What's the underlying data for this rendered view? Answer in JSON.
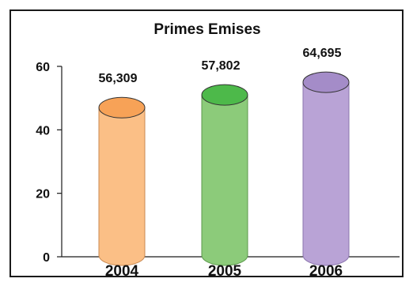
{
  "chart_data": {
    "type": "bar",
    "title": "Primes Emises",
    "categories": [
      "2004",
      "2005",
      "2006"
    ],
    "values": [
      47,
      51,
      55
    ],
    "data_labels": [
      "56,309",
      "57,802",
      "64,695"
    ],
    "ylim": [
      0,
      60
    ],
    "y_ticks": [
      0,
      20,
      40,
      60
    ],
    "xlabel": "",
    "ylabel": "",
    "grid": false,
    "legend": "none",
    "bar_style": "3d-cylinder",
    "colors": [
      {
        "body": "#fbbf86",
        "top": "#f7a257",
        "edge": "#c98a52"
      },
      {
        "body": "#8ccb7a",
        "top": "#4db94a",
        "edge": "#5c9a4c"
      },
      {
        "body": "#b9a3d6",
        "top": "#a48cc8",
        "edge": "#8a74ad"
      }
    ]
  }
}
